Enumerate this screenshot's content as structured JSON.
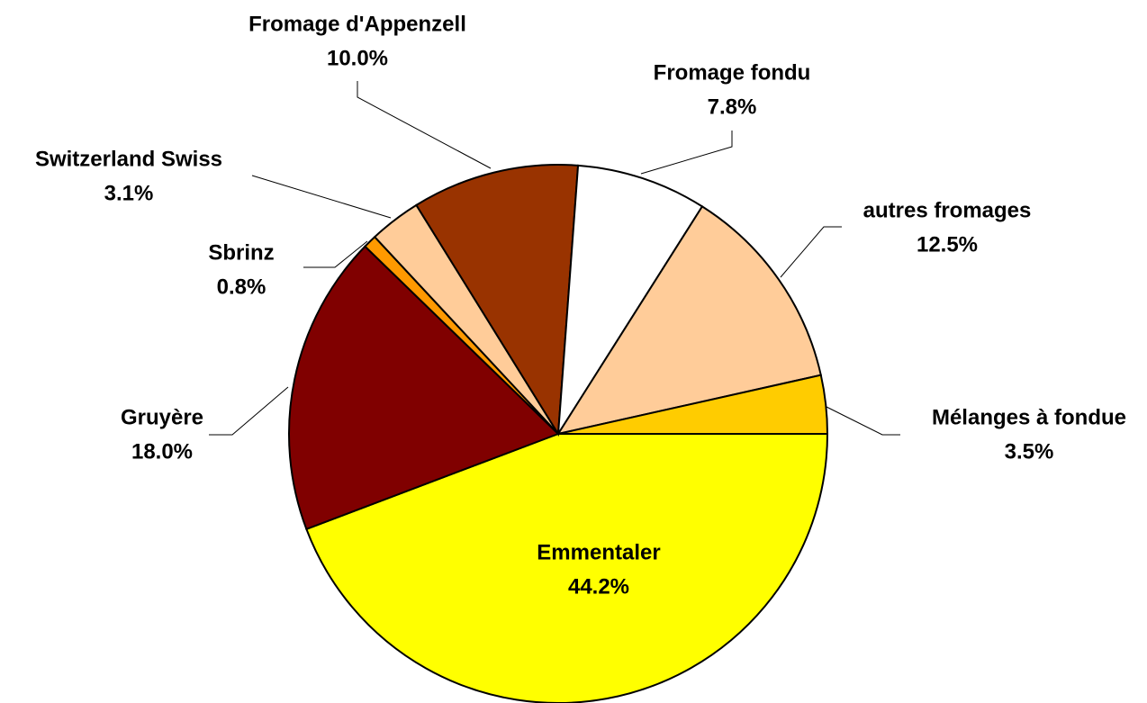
{
  "chart_data": {
    "type": "pie",
    "categories": [
      "Emmentaler",
      "Gruyère",
      "Sbrinz",
      "Switzerland Swiss",
      "Fromage d'Appenzell",
      "Fromage fondu",
      "autres fromages",
      "Mélanges à fondue"
    ],
    "values": [
      44.2,
      18.0,
      0.8,
      3.1,
      10.0,
      7.8,
      12.5,
      3.5
    ],
    "value_labels": [
      "44.2%",
      "18.0%",
      "0.8%",
      "3.1%",
      "10.0%",
      "7.8%",
      "12.5%",
      "3.5%"
    ],
    "colors": [
      "#ffff00",
      "#800000",
      "#ff9900",
      "#ffcc99",
      "#993300",
      "#ffffff",
      "#ffcc99",
      "#ffcc00"
    ]
  }
}
